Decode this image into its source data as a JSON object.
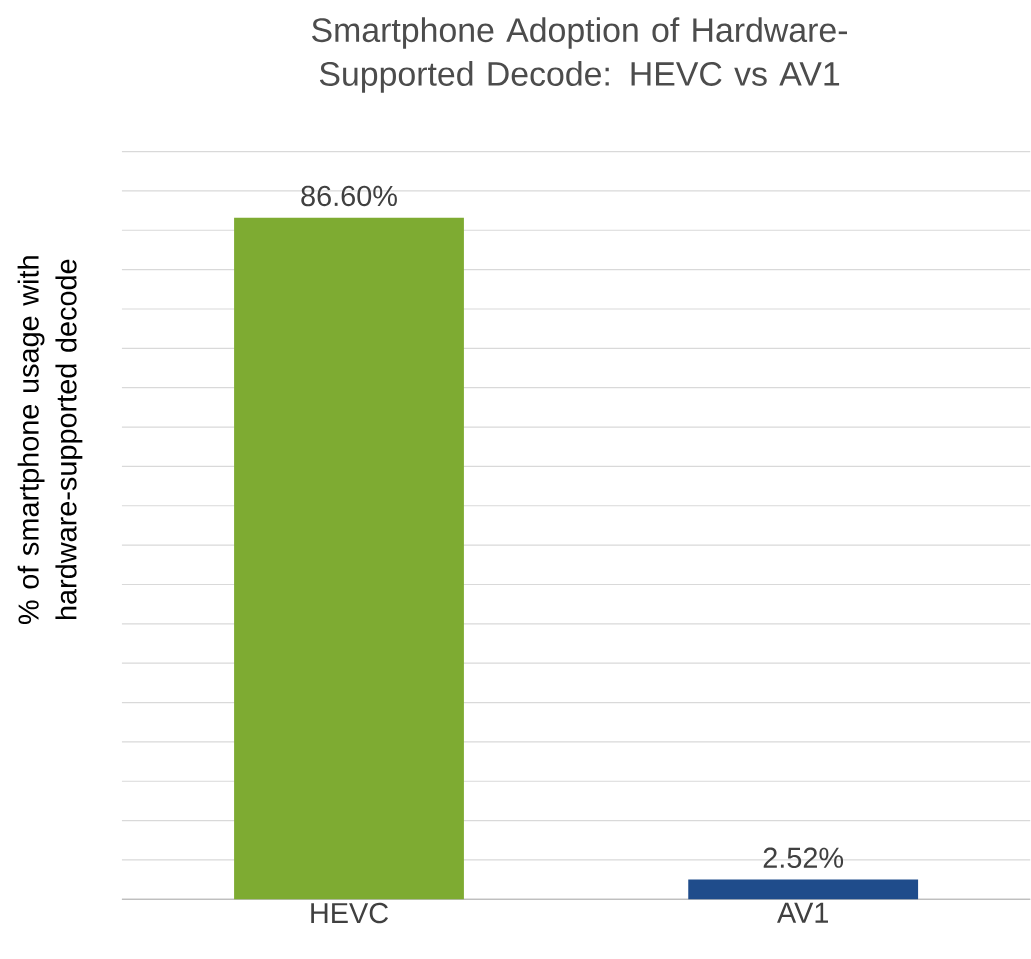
{
  "chart_data": {
    "type": "bar",
    "title": "Smartphone Adoption of Hardware-Supported Decode: HEVC vs AV1",
    "ylabel": "% of smartphone usage with hardware-supported decode",
    "categories": [
      "HEVC",
      "AV1"
    ],
    "values": [
      86.6,
      2.52
    ],
    "colors": [
      "#7eab32",
      "#1f4c8b"
    ],
    "value_labels": [
      "86.60%",
      "2.52%"
    ],
    "grid": "y",
    "tick_labels": "x"
  }
}
